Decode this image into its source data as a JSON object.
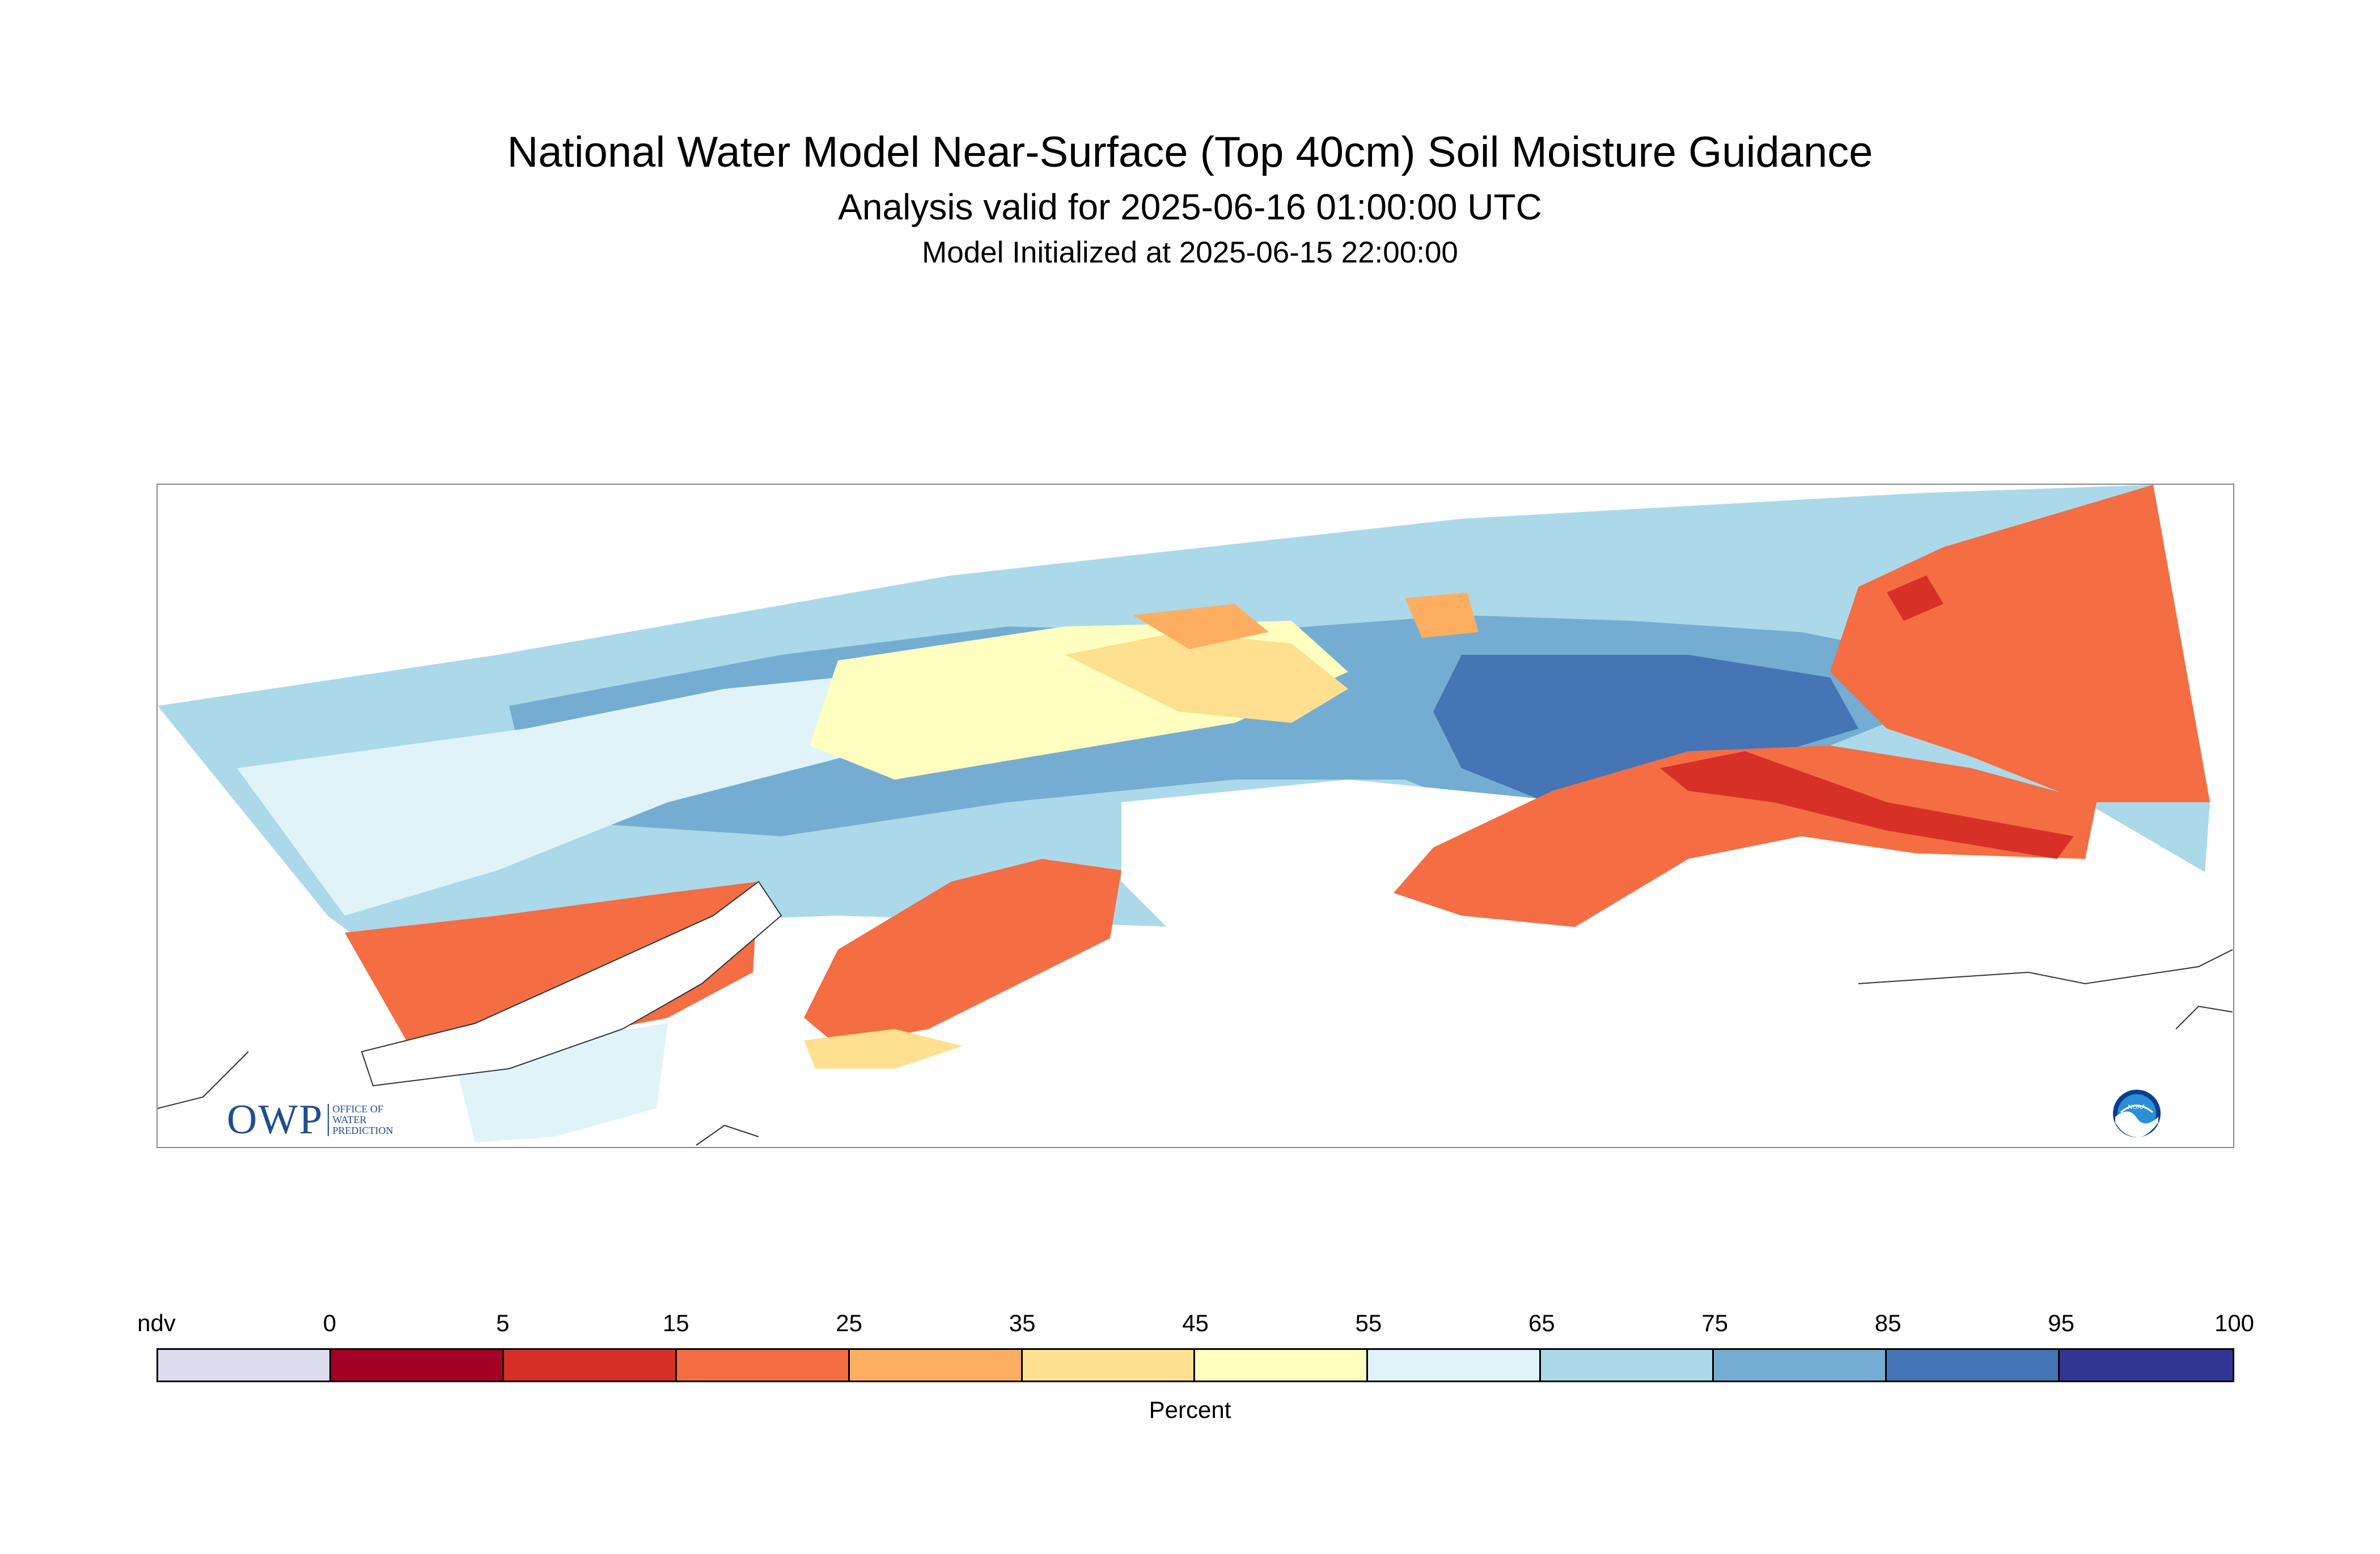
{
  "title": "National Water Model Near-Surface (Top 40cm) Soil Moisture Guidance",
  "subtitle": "Analysis valid for 2025-06-16 01:00:00 UTC",
  "subsubtitle": "Model Initialized at 2025-06-15 22:00:00",
  "logos": {
    "owp_letters": "OWP",
    "owp_line1": "OFFICE OF",
    "owp_line2": "WATER",
    "owp_line3": "PREDICTION",
    "noaa": "NOAA"
  },
  "colorbar": {
    "label": "Percent",
    "ticks": [
      "ndv",
      "0",
      "5",
      "15",
      "25",
      "35",
      "45",
      "55",
      "65",
      "75",
      "85",
      "95",
      "100"
    ],
    "colors": [
      "#dcdcee",
      "#a50026",
      "#d73027",
      "#f46d43",
      "#fdae61",
      "#fee090",
      "#ffffbf",
      "#e0f3f8",
      "#abd9e9",
      "#74add1",
      "#4575b4",
      "#313695"
    ]
  }
}
